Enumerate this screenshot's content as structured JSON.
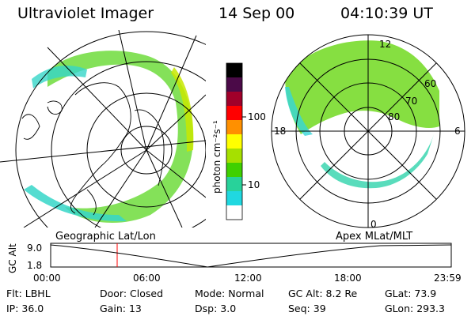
{
  "header": {
    "instrument": "Ultraviolet Imager",
    "date": "14 Sep 00",
    "time": "04:10:39 UT"
  },
  "geographic_panel": {
    "label": "Geographic Lat/Lon"
  },
  "apex_panel": {
    "label": "Apex MLat/MLT",
    "mlt_labels": {
      "top": "12",
      "left": "18",
      "right": "6",
      "bottom": "0"
    },
    "lat_labels": [
      "60",
      "70",
      "80"
    ]
  },
  "colorbar": {
    "unit_label": "photon cm⁻²s⁻¹",
    "ticks": [
      "100",
      "10"
    ],
    "colors": [
      "#000000",
      "#4b0a48",
      "#a0002a",
      "#ff0000",
      "#ff9000",
      "#ffff00",
      "#a6e000",
      "#3fd000",
      "#28d29a",
      "#20d8e0",
      "#ffffff"
    ]
  },
  "altitude_plot": {
    "ylabel": "GC Alt",
    "y_ticks": [
      "9.0",
      "1.8"
    ],
    "x_ticks": [
      "00:00",
      "06:00",
      "12:00",
      "18:00",
      "23:59"
    ],
    "marker_color": "#ff0000"
  },
  "info": {
    "row1": [
      {
        "key": "Flt:",
        "value": "LBHL"
      },
      {
        "key": "Door:",
        "value": "Closed"
      },
      {
        "key": "Mode:",
        "value": "Normal"
      },
      {
        "key": "GC Alt:",
        "value": "8.2 Re"
      },
      {
        "key": "GLat:",
        "value": "73.9"
      }
    ],
    "row2": [
      {
        "key": "IP:",
        "value": "36.0"
      },
      {
        "key": "Gain:",
        "value": "13"
      },
      {
        "key": "Dsp:",
        "value": "3.0"
      },
      {
        "key": "Seq:",
        "value": "39"
      },
      {
        "key": "GLon:",
        "value": "293.3"
      }
    ]
  }
}
